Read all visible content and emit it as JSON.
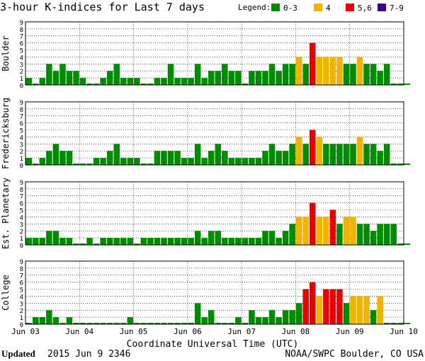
{
  "chart_data": {
    "type": "bar",
    "title": "3-hour K-indices for Last 7 days",
    "legend": {
      "label": "Legend:",
      "placement": "top-right",
      "items": [
        {
          "label": "0-3",
          "color": "#008c00"
        },
        {
          "label": "4",
          "color": "#f0b400"
        },
        {
          "label": "5,6",
          "color": "#e60000"
        },
        {
          "label": "7-9",
          "color": "#3c0096"
        }
      ]
    },
    "xlabel": "Coordinate Universal Time (UTC)",
    "x_ticks": [
      "Jun 03",
      "Jun 04",
      "Jun 05",
      "Jun 06",
      "Jun 07",
      "Jun 08",
      "Jun 09",
      "Jun 10"
    ],
    "y_ticks": [
      "0",
      "1",
      "2",
      "3",
      "4",
      "5",
      "6",
      "7",
      "8",
      "9"
    ],
    "ylim": [
      0,
      9
    ],
    "bins_per_day": 8,
    "grid": true,
    "series": [
      {
        "name": "Boulder",
        "values": [
          1,
          0,
          1,
          3,
          2,
          3,
          2,
          2,
          1,
          0,
          0,
          1,
          2,
          3,
          1,
          1,
          1,
          0,
          0,
          1,
          1,
          3,
          1,
          1,
          1,
          3,
          1,
          2,
          2,
          3,
          2,
          2,
          0,
          2,
          2,
          2,
          3,
          2,
          3,
          3,
          4,
          3,
          6,
          4,
          4,
          4,
          4,
          3,
          3,
          4,
          3,
          3,
          2,
          3,
          0,
          0,
          0
        ]
      },
      {
        "name": "Fredericksburg",
        "values": [
          1,
          0,
          1,
          2,
          3,
          2,
          2,
          0,
          0,
          0,
          1,
          1,
          2,
          3,
          1,
          1,
          1,
          0,
          0,
          2,
          2,
          2,
          2,
          1,
          1,
          3,
          1,
          2,
          3,
          2,
          1,
          1,
          1,
          1,
          1,
          2,
          3,
          2,
          2,
          3,
          4,
          3,
          5,
          4,
          3,
          3,
          3,
          3,
          3,
          4,
          3,
          3,
          2,
          3,
          0,
          0,
          0
        ]
      },
      {
        "name": "Est. Planetary",
        "values": [
          1,
          1,
          1,
          2,
          2,
          1,
          1,
          0,
          0,
          1,
          0,
          1,
          1,
          1,
          1,
          1,
          0,
          1,
          1,
          1,
          1,
          1,
          1,
          1,
          1,
          2,
          1,
          2,
          2,
          1,
          1,
          1,
          1,
          1,
          1,
          2,
          2,
          1,
          2,
          3,
          4,
          4,
          6,
          4,
          4,
          5,
          3,
          4,
          4,
          3,
          3,
          2,
          3,
          3,
          3,
          0,
          0
        ]
      },
      {
        "name": "College",
        "values": [
          0,
          1,
          1,
          2,
          1,
          0,
          1,
          0,
          0,
          0,
          0,
          0,
          0,
          0,
          0,
          1,
          0,
          0,
          0,
          0,
          0,
          0,
          0,
          0,
          0,
          3,
          1,
          2,
          0,
          0,
          0,
          1,
          0,
          2,
          1,
          1,
          2,
          1,
          2,
          2,
          3,
          5,
          6,
          4,
          5,
          5,
          5,
          3,
          4,
          4,
          4,
          2,
          4,
          0,
          0,
          0,
          0
        ]
      }
    ]
  },
  "footer": {
    "updated_label": "Updated",
    "updated_value": "2015 Jun  9 2346",
    "source": "NOAA/SWPC Boulder, CO USA"
  }
}
